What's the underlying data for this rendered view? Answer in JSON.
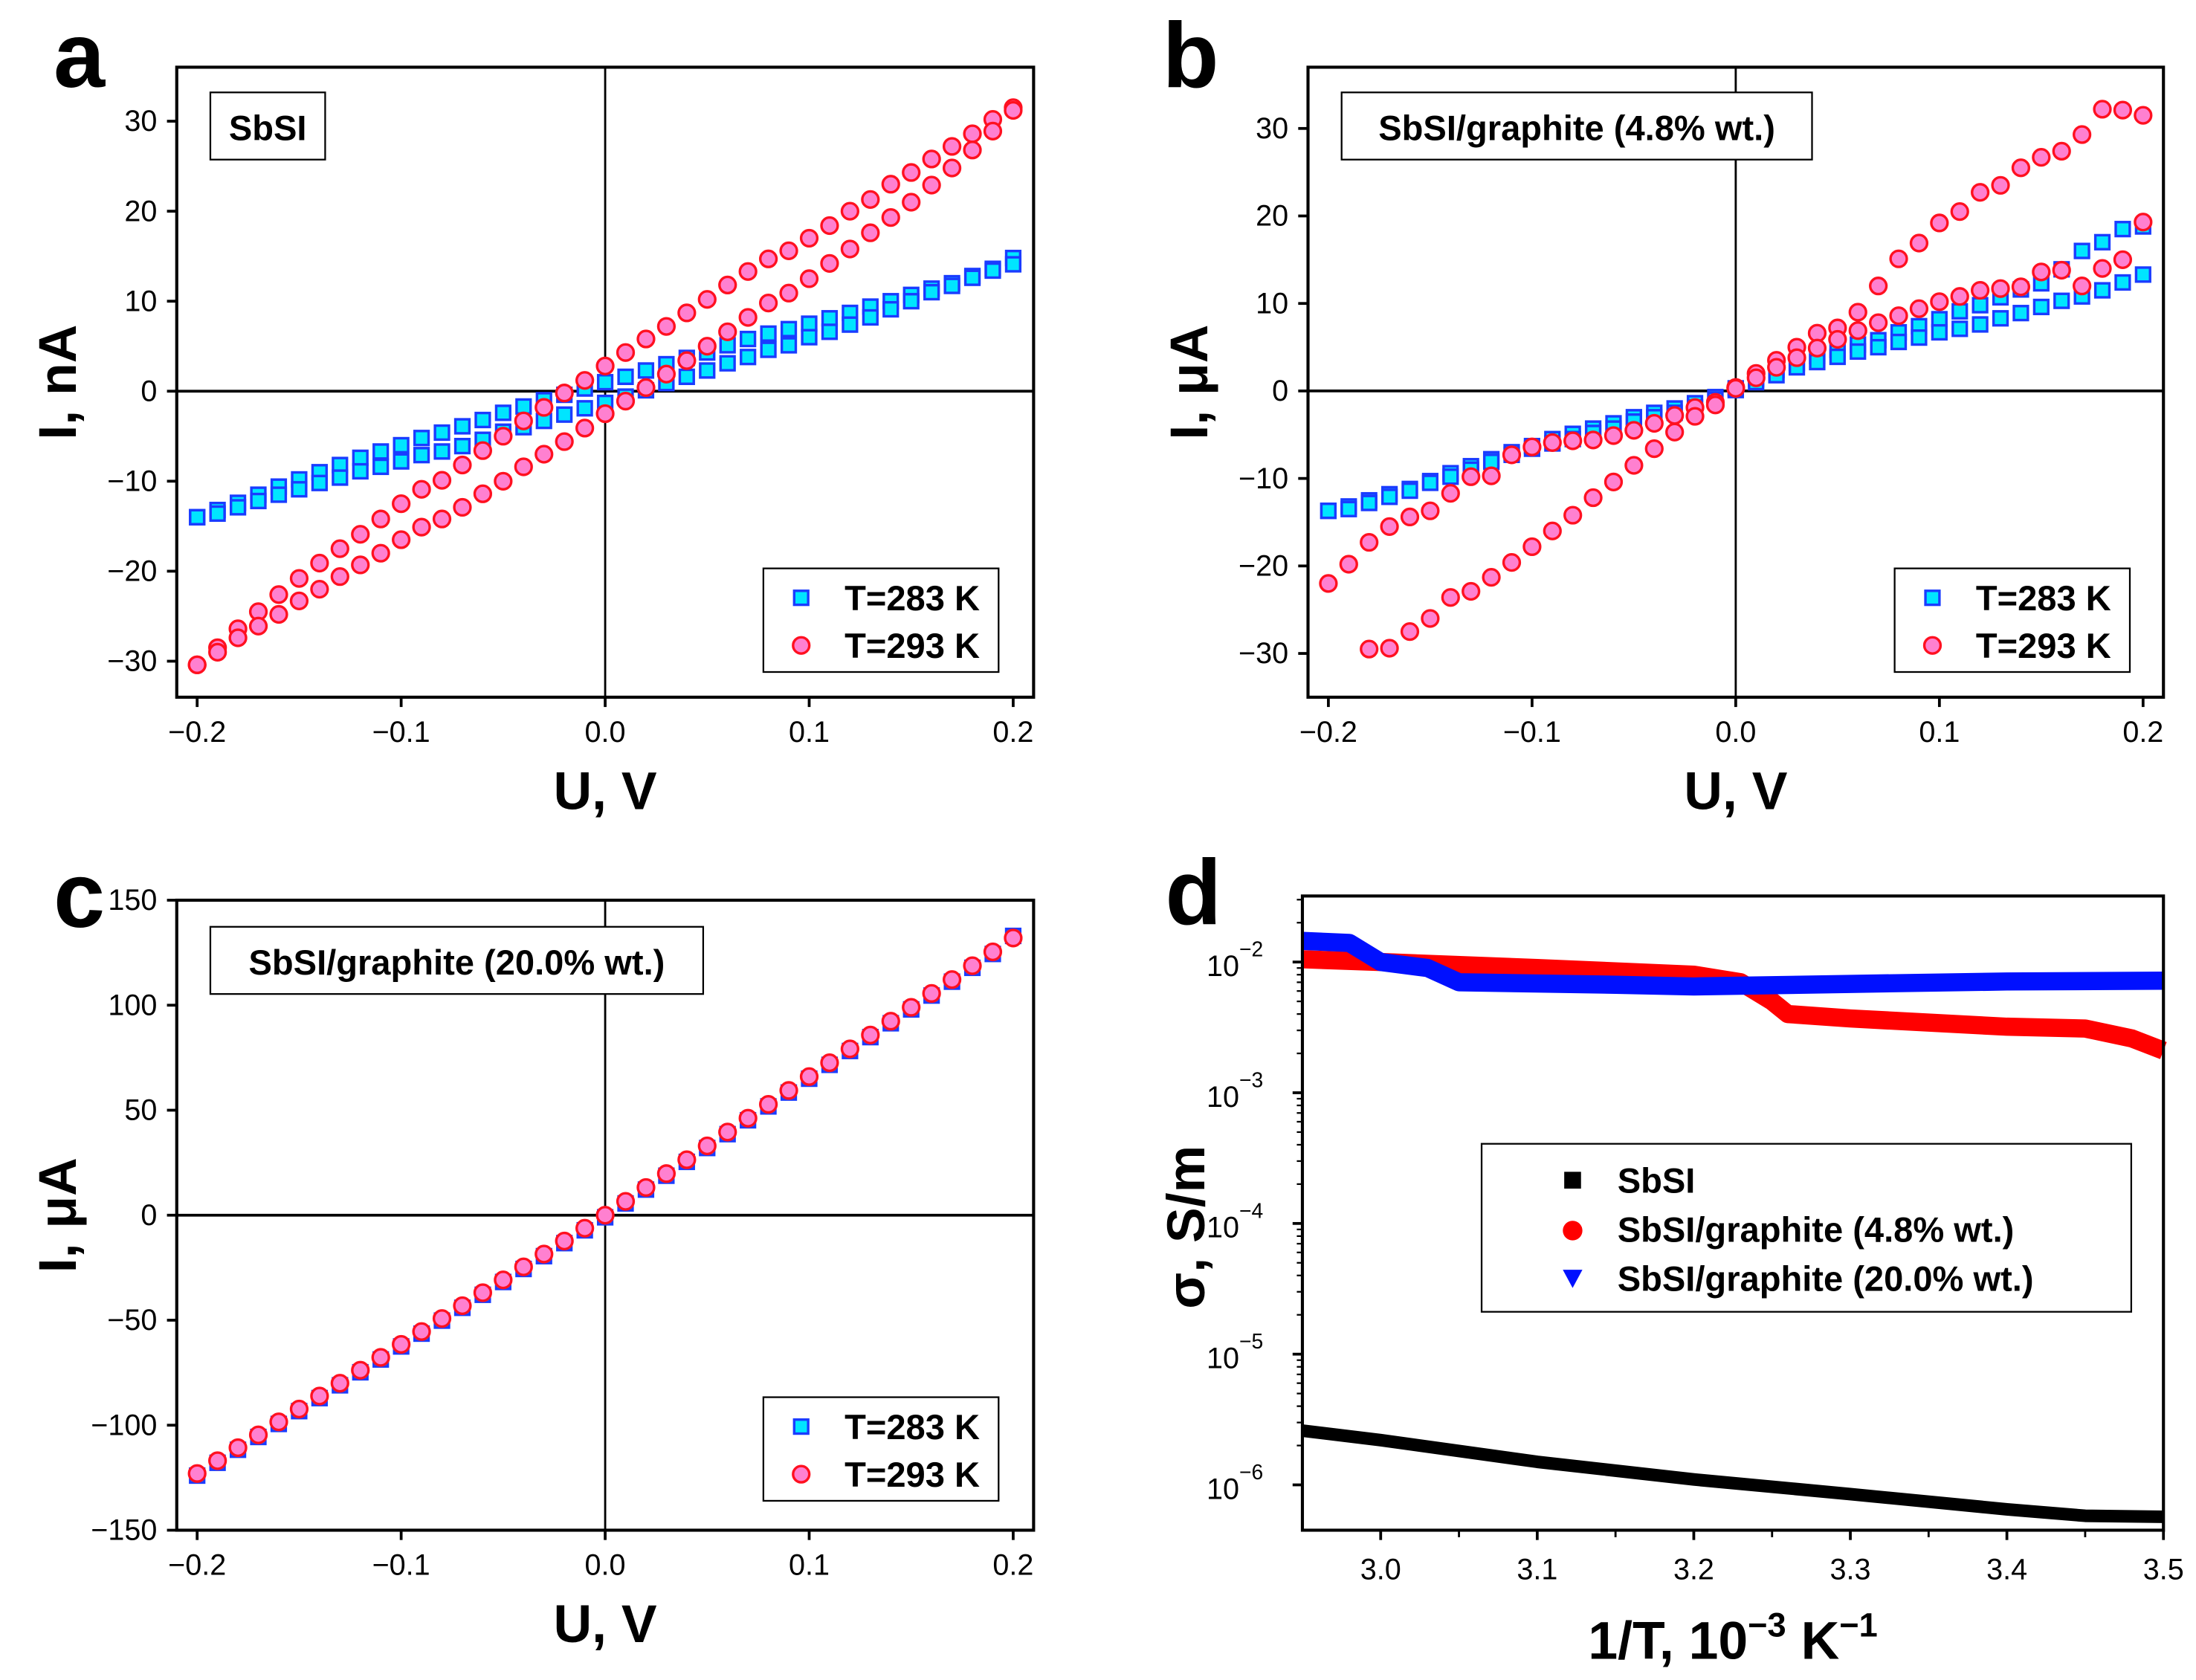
{
  "colors": {
    "cyan_fill": "#00e5ff",
    "blue_edge": "#1a3cff",
    "pink_fill": "#ff80d0",
    "red_edge": "#ff1020",
    "red": "#ff0000",
    "blue": "#0010ff",
    "black": "#000000"
  },
  "chart_data": [
    {
      "type": "scatter",
      "panel": "a",
      "label": "SbSI",
      "xlabel": "U, V",
      "ylabel": "I, nA",
      "xlim": [
        -0.21,
        0.21
      ],
      "ylim": [
        -34,
        36
      ],
      "xticks": [
        "−0.2",
        "−0.1",
        "0.0",
        "0.1",
        "0.2"
      ],
      "xtickvals": [
        -0.2,
        -0.1,
        0,
        0.1,
        0.2
      ],
      "yticks": [
        "−30",
        "−20",
        "−10",
        "0",
        "10",
        "20",
        "30"
      ],
      "ytickvals": [
        -30,
        -20,
        -10,
        0,
        10,
        20,
        30
      ],
      "legend": [
        "T=283 K",
        "T=293 K"
      ],
      "legend_position": "bottom-right",
      "x_start": -0.2,
      "x_step": 0.01,
      "series": [
        {
          "name": "T=283 K",
          "marker": "square",
          "branches": [
            [
              -14,
              -13.2,
              -12.4,
              -11.5,
              -10.6,
              -9.8,
              -9.0,
              -8.2,
              -7.4,
              -6.7,
              -6.0,
              -5.2,
              -4.6,
              -3.9,
              -3.2,
              -2.4,
              -1.7,
              -1.0,
              -0.4,
              0.3,
              1.0,
              1.6,
              2.3,
              3.0,
              3.7,
              4.3,
              5.1,
              5.8,
              6.4,
              6.9,
              7.5,
              8.1,
              8.7,
              9.4,
              10,
              10.7,
              11.4,
              12,
              12.8,
              13.6,
              14.8
            ],
            [
              -14,
              -13.6,
              -12.9,
              -12.2,
              -11.5,
              -10.9,
              -10.2,
              -9.6,
              -8.9,
              -8.4,
              -7.8,
              -7.1,
              -6.7,
              -6.1,
              -5.4,
              -4.5,
              -4,
              -3.3,
              -2.6,
              -1.9,
              -1.3,
              -0.6,
              0.1,
              0.9,
              1.6,
              2.3,
              3.1,
              3.8,
              4.6,
              5.1,
              6,
              6.6,
              7.4,
              8.2,
              9.1,
              10,
              11,
              11.7,
              12.6,
              13.4,
              14.1
            ]
          ]
        },
        {
          "name": "T=293 K",
          "marker": "circle",
          "branches": [
            [
              -30.4,
              -28.5,
              -26.4,
              -24.5,
              -22.6,
              -20.8,
              -19.1,
              -17.5,
              -15.9,
              -14.2,
              -12.5,
              -10.9,
              -9.9,
              -8.2,
              -6.6,
              -5,
              -3.3,
              -1.8,
              -0.2,
              1.2,
              2.8,
              4.3,
              5.8,
              7.2,
              8.7,
              10.2,
              11.8,
              13.3,
              14.7,
              15.6,
              17,
              18.4,
              20,
              21.3,
              23,
              24.3,
              25.8,
              27.2,
              28.6,
              30.2,
              31.5
            ],
            [
              -30.4,
              -29,
              -27.4,
              -26.1,
              -24.8,
              -23.3,
              -22,
              -20.6,
              -19.3,
              -18,
              -16.5,
              -15.1,
              -14.2,
              -12.9,
              -11.4,
              -10,
              -8.4,
              -7,
              -5.6,
              -4.1,
              -2.5,
              -1.1,
              0.4,
              1.9,
              3.4,
              5,
              6.6,
              8.2,
              9.8,
              10.9,
              12.5,
              14.2,
              15.8,
              17.6,
              19.3,
              21,
              22.9,
              24.8,
              26.8,
              28.9,
              31.2
            ]
          ]
        }
      ]
    },
    {
      "type": "scatter",
      "panel": "b",
      "label": "SbSI/graphite (4.8% wt.)",
      "xlabel": "U, V",
      "ylabel": "I, μA",
      "xlim": [
        -0.21,
        0.21
      ],
      "ylim": [
        -35,
        37
      ],
      "xticks": [
        "−0.2",
        "−0.1",
        "0.0",
        "0.1",
        "0.2"
      ],
      "xtickvals": [
        -0.2,
        -0.1,
        0,
        0.1,
        0.2
      ],
      "yticks": [
        "−30",
        "−20",
        "−10",
        "0",
        "10",
        "20",
        "30"
      ],
      "ytickvals": [
        -30,
        -20,
        -10,
        0,
        10,
        20,
        30
      ],
      "legend": [
        "T=283 K",
        "T=293 K"
      ],
      "legend_position": "bottom-right",
      "x_start": -0.2,
      "x_step": 0.01,
      "series": [
        {
          "name": "T=283 K",
          "marker": "square",
          "branches": [
            [
              -13.7,
              -13.2,
              -12.5,
              -11.8,
              -11.2,
              -10.3,
              -9.4,
              -8.6,
              -7.8,
              -7,
              -6.3,
              -5.5,
              -4.9,
              -4.3,
              -3.7,
              -3,
              -2.5,
              -2,
              -1.4,
              -0.7,
              0.3,
              1.4,
              2.4,
              3.2,
              4,
              4.7,
              5.3,
              5.8,
              6.7,
              7.4,
              8.2,
              9.1,
              9.8,
              10.7,
              11.6,
              12.3,
              13.9,
              16,
              17,
              18.5,
              18.8
            ],
            [
              -13.7,
              -13.5,
              -12.8,
              -12.1,
              -11.4,
              -10.5,
              -9.8,
              -9,
              -8.1,
              -7.3,
              -6.6,
              -6,
              -5.5,
              -4.8,
              -4.3,
              -3.5,
              -3,
              -2.5,
              -1.9,
              -1,
              0.1,
              1,
              1.8,
              2.7,
              3.3,
              3.9,
              4.5,
              5,
              5.6,
              6.1,
              6.7,
              7.1,
              7.6,
              8.3,
              8.9,
              9.6,
              10.3,
              10.8,
              11.5,
              12.4,
              13.3
            ]
          ]
        },
        {
          "name": "T=293 K",
          "marker": "circle",
          "branches": [
            [
              -22,
              -19.8,
              -17.3,
              -15.5,
              -14.4,
              -13.7,
              -11.7,
              -9.8,
              -9.7,
              -7.3,
              -6.4,
              -5.9,
              -5.7,
              -5.6,
              -5.1,
              -4.5,
              -3.7,
              -2.8,
              -1.9,
              -1.3,
              0.4,
              2,
              3.5,
              5,
              6.6,
              7.2,
              9,
              12,
              15.1,
              16.9,
              19.2,
              20.5,
              22.7,
              23.5,
              25.5,
              26.7,
              27.4,
              29.3,
              32.2,
              32.1,
              31.5
            ],
            [
              null,
              null,
              -29.5,
              -29.4,
              -27.5,
              -26,
              -23.6,
              -22.9,
              -21.3,
              -19.6,
              -17.8,
              -16,
              -14.2,
              -12.2,
              -10.4,
              -8.5,
              -6.6,
              -4.7,
              -2.9,
              -1.6,
              0.3,
              1.5,
              2.7,
              3.8,
              4.9,
              5.9,
              6.9,
              7.8,
              8.6,
              9.4,
              10.2,
              10.8,
              11.5,
              11.7,
              11.9,
              13.6,
              13.8,
              12,
              14,
              15,
              19.3
            ]
          ]
        }
      ]
    },
    {
      "type": "scatter",
      "panel": "c",
      "label": "SbSI/graphite (20.0% wt.)",
      "xlabel": "U, V",
      "ylabel": "I, μA",
      "xlim": [
        -0.21,
        0.21
      ],
      "ylim": [
        -150,
        150
      ],
      "xticks": [
        "−0.2",
        "−0.1",
        "0.0",
        "0.1",
        "0.2"
      ],
      "xtickvals": [
        -0.2,
        -0.1,
        0,
        0.1,
        0.2
      ],
      "yticks": [
        "−150",
        "−100",
        "−50",
        "0",
        "50",
        "100",
        "150"
      ],
      "ytickvals": [
        -150,
        -100,
        -50,
        0,
        50,
        100,
        150
      ],
      "legend": [
        "T=283 K",
        "T=293 K"
      ],
      "legend_position": "bottom-right",
      "x_start": -0.2,
      "x_step": 0.01,
      "series": [
        {
          "name": "T=283 K",
          "marker": "square",
          "branches": [
            [
              -124,
              -117.9,
              -111.7,
              -105.6,
              -99.4,
              -93.3,
              -87.1,
              -81,
              -74.8,
              -68.7,
              -62.5,
              -56.4,
              -50.2,
              -44.1,
              -37.9,
              -31.8,
              -25.6,
              -19.5,
              -13.3,
              -7.2,
              -1,
              5.6,
              12.2,
              18.8,
              25.4,
              32,
              38.6,
              45.2,
              51.8,
              58.4,
              65,
              71.6,
              78.2,
              84.8,
              91.4,
              98,
              104.6,
              111.2,
              117.8,
              124.4,
              133
            ]
          ]
        },
        {
          "name": "T=293 K",
          "marker": "circle",
          "branches": [
            [
              -123,
              -116.9,
              -110.7,
              -104.6,
              -98.4,
              -92.3,
              -86.1,
              -80,
              -73.8,
              -67.7,
              -61.5,
              -55.4,
              -49.2,
              -43.1,
              -36.9,
              -30.8,
              -24.6,
              -18.5,
              -12.3,
              -6.2,
              0,
              6.6,
              13.2,
              19.8,
              26.4,
              33,
              39.6,
              46.2,
              52.8,
              59.4,
              66,
              72.6,
              79.2,
              85.8,
              92.4,
              99,
              105.6,
              112.2,
              118.8,
              125.4,
              132
            ]
          ]
        }
      ]
    },
    {
      "type": "line",
      "panel": "d",
      "xlabel_main": "1/T, 10",
      "xlabel_exp": "−3",
      "xlabel_unit": " K",
      "xlabel_unit_exp": "−1",
      "ylabel": "σ, S/m",
      "yscale": "log",
      "xlim": [
        2.95,
        3.5
      ],
      "ylim": [
        4.5e-07,
        0.032
      ],
      "xticks": [
        "3.0",
        "3.1",
        "3.2",
        "3.3",
        "3.4",
        "3.5"
      ],
      "xtickvals": [
        3.0,
        3.1,
        3.2,
        3.3,
        3.4,
        3.5
      ],
      "yticks": [
        {
          "base": "10",
          "exp": "−2",
          "v": 0.01
        },
        {
          "base": "10",
          "exp": "−3",
          "v": 0.001
        },
        {
          "base": "10",
          "exp": "−4",
          "v": 0.0001
        },
        {
          "base": "10",
          "exp": "−5",
          "v": 1e-05
        },
        {
          "base": "10",
          "exp": "−6",
          "v": 1e-06
        }
      ],
      "legend_position": "center-right",
      "series": [
        {
          "name": "SbSI",
          "marker": "square",
          "color": "#000000",
          "points": [
            [
              2.95,
              2.6e-06
            ],
            [
              3.0,
              2.2e-06
            ],
            [
              3.1,
              1.5e-06
            ],
            [
              3.2,
              1.1e-06
            ],
            [
              3.3,
              8.5e-07
            ],
            [
              3.4,
              6.5e-07
            ],
            [
              3.45,
              5.8e-07
            ],
            [
              3.5,
              5.7e-07
            ]
          ]
        },
        {
          "name": "SbSI/graphite (4.8% wt.)",
          "marker": "circle",
          "color": "#ff0000",
          "points": [
            [
              2.95,
              0.0105
            ],
            [
              3.0,
              0.01
            ],
            [
              3.1,
              0.009
            ],
            [
              3.2,
              0.008
            ],
            [
              3.23,
              0.007
            ],
            [
              3.25,
              0.005
            ],
            [
              3.26,
              0.004
            ],
            [
              3.3,
              0.0037
            ],
            [
              3.4,
              0.0032
            ],
            [
              3.45,
              0.0031
            ],
            [
              3.48,
              0.0026
            ],
            [
              3.5,
              0.0021
            ]
          ]
        },
        {
          "name": "SbSI/graphite (20.0% wt.)",
          "marker": "triangle-down",
          "color": "#0010ff",
          "points": [
            [
              2.95,
              0.0145
            ],
            [
              2.98,
              0.014
            ],
            [
              3.0,
              0.01
            ],
            [
              3.03,
              0.009
            ],
            [
              3.05,
              0.007
            ],
            [
              3.15,
              0.0067
            ],
            [
              3.2,
              0.0065
            ],
            [
              3.3,
              0.0068
            ],
            [
              3.4,
              0.0071
            ],
            [
              3.5,
              0.0072
            ]
          ]
        }
      ]
    }
  ],
  "panel_letters": [
    "a",
    "b",
    "c",
    "d"
  ]
}
